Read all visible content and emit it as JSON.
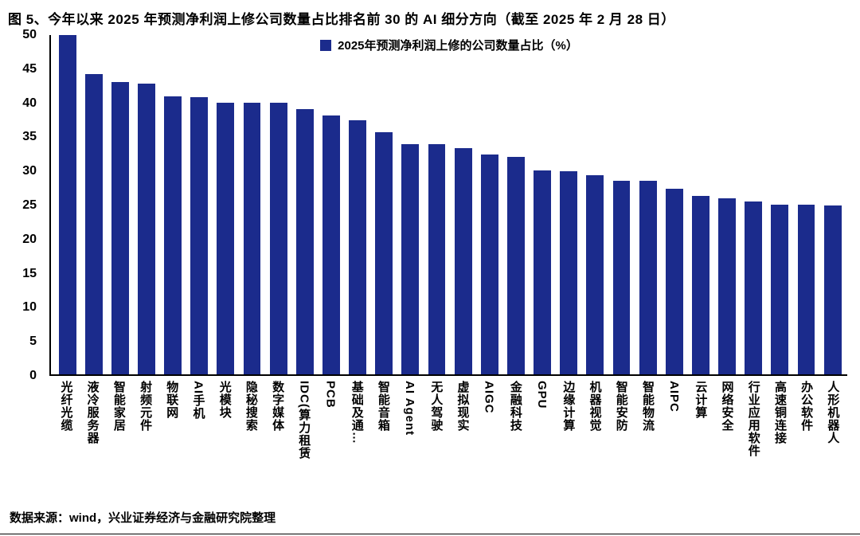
{
  "header": {
    "title": "图 5、今年以来 2025 年预测净利润上修公司数量占比排名前 30 的 AI 细分方向（截至 2025 年 2 月 28 日）"
  },
  "footer": {
    "source": "数据来源：wind，兴业证券经济与金融研究院整理"
  },
  "chart_data": {
    "type": "bar",
    "title": "图 5、今年以来 2025 年预测净利润上修公司数量占比排名前 30 的 AI 细分方向（截至 2025 年 2 月 28 日）",
    "legend": "2025年预测净利润上修的公司数量占比（%）",
    "legend_position": "top-center",
    "bar_color": "#1b2b8c",
    "grid": false,
    "xlabel": "",
    "ylabel": "",
    "ylim": [
      0,
      50
    ],
    "ytick_step": 5,
    "yticks": [
      0,
      5,
      10,
      15,
      20,
      25,
      30,
      35,
      40,
      45,
      50
    ],
    "categories": [
      "光纤光缆",
      "液冷服务器",
      "智能家居",
      "射频元件",
      "物联网",
      "AI手机",
      "光模块",
      "隐秘搜索",
      "数字媒体",
      "IDC(算力租赁",
      "PCB",
      "基础及通…",
      "智能音箱",
      "AI Agent",
      "无人驾驶",
      "虚拟现实",
      "AIGC",
      "金融科技",
      "GPU",
      "边缘计算",
      "机器视觉",
      "智能安防",
      "智能物流",
      "AIPC",
      "云计算",
      "网络安全",
      "行业应用软件",
      "高速铜连接",
      "办公软件",
      "人形机器人"
    ],
    "values": [
      50.0,
      44.3,
      43.1,
      42.8,
      41.0,
      40.9,
      40.0,
      40.0,
      40.0,
      39.1,
      38.1,
      37.5,
      35.7,
      33.9,
      33.9,
      33.3,
      32.4,
      32.0,
      30.0,
      29.9,
      29.3,
      28.5,
      28.5,
      27.3,
      26.3,
      25.9,
      25.5,
      25.0,
      25.0,
      24.9
    ]
  }
}
